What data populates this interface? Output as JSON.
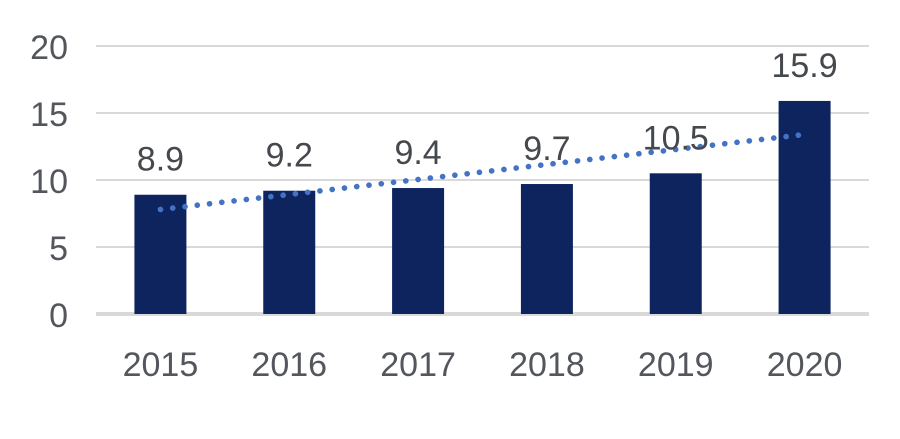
{
  "chart_data": {
    "type": "bar",
    "title": "",
    "xlabel": "",
    "ylabel": "",
    "categories": [
      "2015",
      "2016",
      "2017",
      "2018",
      "2019",
      "2020"
    ],
    "values": [
      8.9,
      9.2,
      9.4,
      9.7,
      10.5,
      15.9
    ],
    "data_labels": [
      "8.9",
      "9.2",
      "9.4",
      "9.7",
      "10.5",
      "15.9"
    ],
    "y_tick_labels": [
      "0",
      "5",
      "10",
      "15",
      "20"
    ],
    "y_tick_values": [
      0,
      5,
      10,
      15,
      20
    ],
    "ylim": [
      0,
      20
    ],
    "grid": true,
    "legend": false,
    "trendline": {
      "type": "linear",
      "style": "dotted",
      "start_value": 7.8,
      "end_value": 13.4
    }
  },
  "colors": {
    "bar": "#0D245F",
    "trendline_dot": "#4472C4",
    "gridline": "#D9D9D9",
    "axis_line": "#D9D9D9",
    "axis_text": "#53565C",
    "data_label_text": "#45484D",
    "background": "#FFFFFF"
  }
}
